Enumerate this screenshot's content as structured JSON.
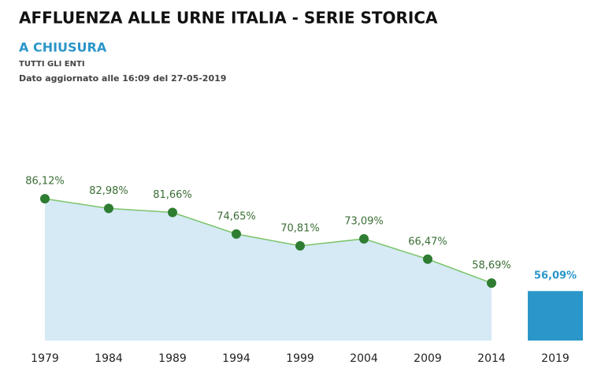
{
  "chart_data": {
    "type": "area",
    "title": "AFFLUENZA ALLE URNE ITALIA - SERIE STORICA",
    "subtitle": "A CHIUSURA",
    "scope": "TUTTI GLI ENTI",
    "updated": "Dato aggiornato alle 16:09 del 27-05-2019",
    "categories": [
      "1979",
      "1984",
      "1989",
      "1994",
      "1999",
      "2004",
      "2009",
      "2014",
      "2019"
    ],
    "ylim": [
      40,
      100
    ],
    "series": [
      {
        "type": "area",
        "color": "#2e7d32",
        "line_color": "#7cc46a",
        "fill": "#d5eaf5",
        "values": [
          86.12,
          82.98,
          81.66,
          74.65,
          70.81,
          73.09,
          66.47,
          58.69,
          null
        ],
        "value_labels": [
          "86,12%",
          "82,98%",
          "81,66%",
          "74,65%",
          "70,81%",
          "73,09%",
          "66,47%",
          "58,69%",
          null
        ]
      },
      {
        "type": "bar",
        "color": "#2b96c9",
        "values": [
          null,
          null,
          null,
          null,
          null,
          null,
          null,
          null,
          56.09
        ],
        "value_labels": [
          null,
          null,
          null,
          null,
          null,
          null,
          null,
          null,
          "56,09%"
        ]
      }
    ]
  }
}
